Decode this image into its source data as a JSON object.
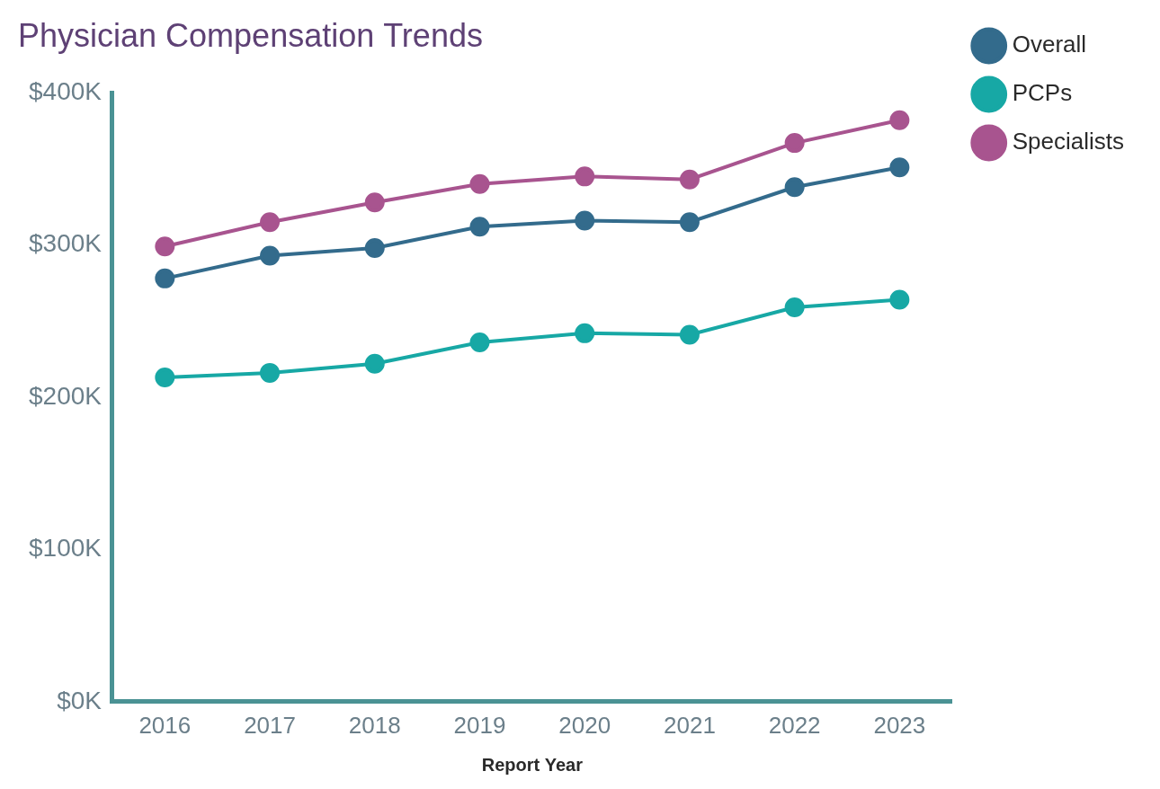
{
  "chart_data": {
    "type": "line",
    "title": "Physician Compensation Trends",
    "x_label": "Report Year",
    "categories": [
      "2016",
      "2017",
      "2018",
      "2019",
      "2020",
      "2021",
      "2022",
      "2023"
    ],
    "series": [
      {
        "name": "Overall",
        "color": "#336b8c",
        "marker": "circle",
        "values": [
          278,
          293,
          298,
          312,
          316,
          315,
          338,
          351
        ]
      },
      {
        "name": "PCPs",
        "color": "#17a8a5",
        "marker": "circle",
        "values": [
          213,
          216,
          222,
          236,
          242,
          241,
          259,
          264
        ]
      },
      {
        "name": "Specialists",
        "color": "#a8548f",
        "marker": "circle",
        "values": [
          299,
          315,
          328,
          340,
          345,
          343,
          367,
          382
        ]
      }
    ],
    "ylim": [
      0,
      400
    ],
    "yticks": [
      {
        "value": 0,
        "label": "$0K"
      },
      {
        "value": 100,
        "label": "$100K"
      },
      {
        "value": 200,
        "label": "$200K"
      },
      {
        "value": 300,
        "label": "$300K"
      },
      {
        "value": 400,
        "label": "$400K"
      }
    ],
    "grid": false,
    "legend": "right"
  }
}
